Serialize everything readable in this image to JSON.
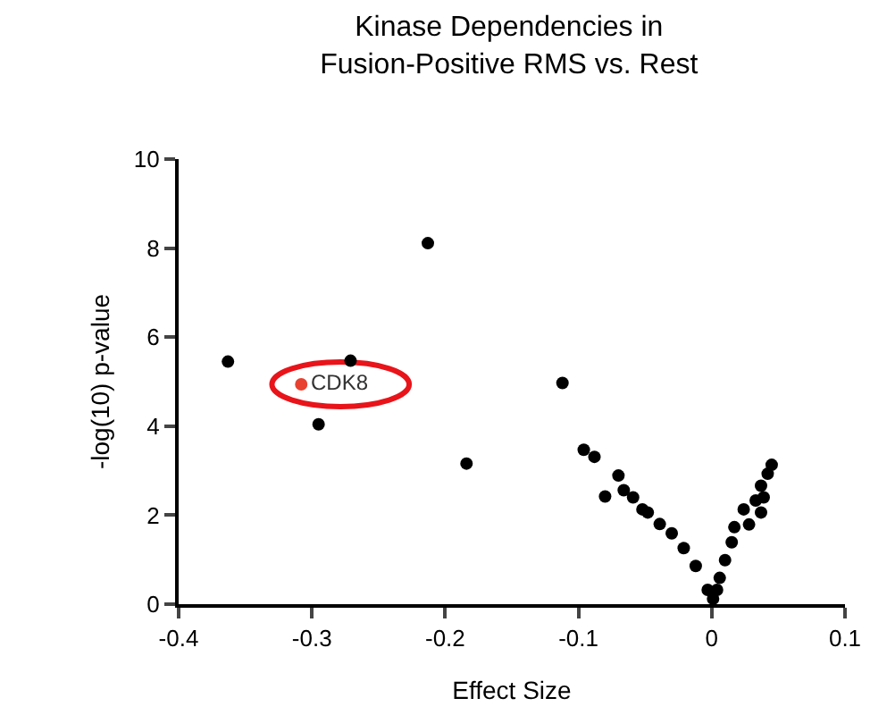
{
  "chart_data": {
    "type": "scatter",
    "title": "Kinase Dependencies in\nFusion-Positive RMS vs. Rest",
    "xlabel": "Effect Size",
    "ylabel": "-log(10) p-value",
    "xlim": [
      -0.4,
      0.1
    ],
    "xticks": [
      -0.4,
      -0.3,
      -0.2,
      -0.1,
      0,
      0.1
    ],
    "ylim": [
      0,
      10
    ],
    "yticks": [
      0,
      2,
      4,
      6,
      8,
      10
    ],
    "grid": false,
    "legend": false,
    "marker": "circle",
    "series": [
      {
        "color": "#000000",
        "x": [
          -0.363,
          -0.271,
          -0.295,
          -0.213,
          -0.112,
          -0.184,
          -0.096,
          -0.088,
          -0.07,
          -0.08,
          -0.066,
          -0.059,
          -0.052,
          -0.048,
          -0.039,
          -0.03,
          -0.021,
          -0.012,
          -0.003,
          0.001,
          0.045,
          0.042,
          0.037,
          0.039,
          0.033,
          0.024,
          0.037,
          0.017,
          0.028,
          0.015,
          0.01,
          0.006,
          0.004
        ],
        "values": [
          5.45,
          5.47,
          4.04,
          8.11,
          4.97,
          3.16,
          3.47,
          3.31,
          2.89,
          2.42,
          2.56,
          2.4,
          2.13,
          2.06,
          1.8,
          1.59,
          1.26,
          0.86,
          0.32,
          0.12,
          3.13,
          2.93,
          2.66,
          2.4,
          2.33,
          2.13,
          2.06,
          1.73,
          1.79,
          1.39,
          0.99,
          0.59,
          0.32
        ]
      },
      {
        "name": "CDK8",
        "color": "#e8412f",
        "x": [
          -0.308
        ],
        "values": [
          4.94
        ]
      }
    ]
  }
}
